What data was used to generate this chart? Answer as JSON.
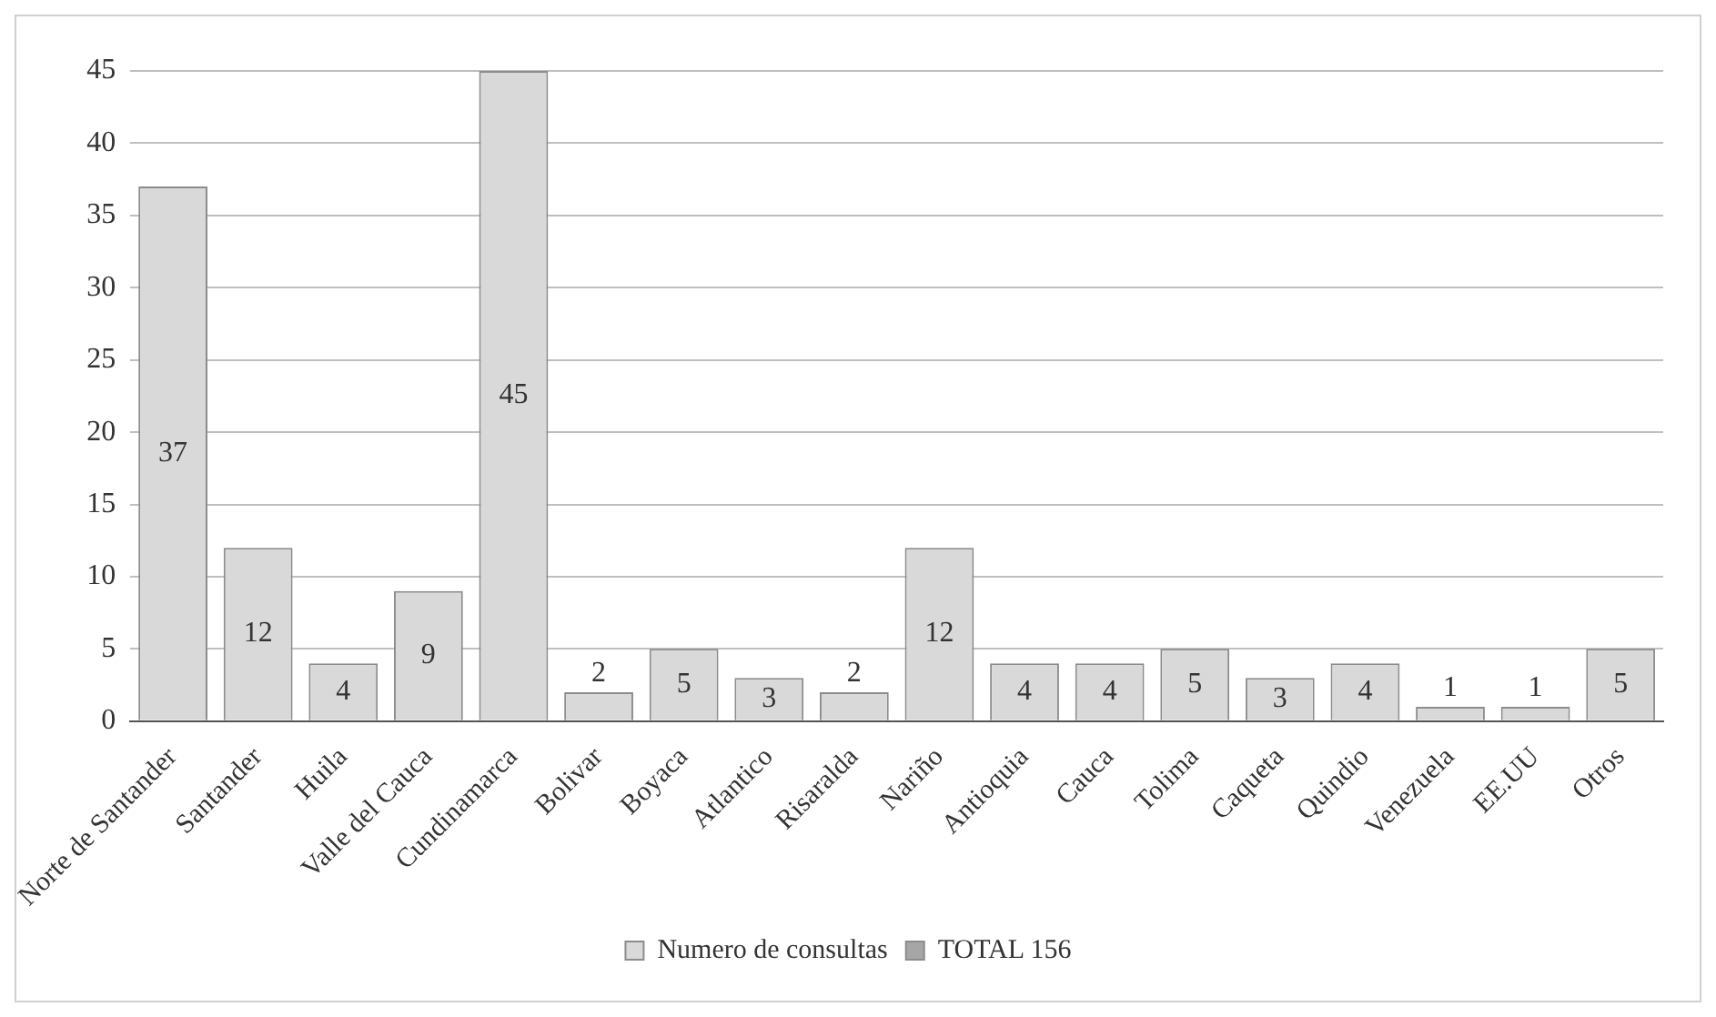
{
  "chart_data": {
    "type": "bar",
    "categories": [
      "Norte de Santander",
      "Santander",
      "Huila",
      "Valle del Cauca",
      "Cundinamarca",
      "Bolivar",
      "Boyaca",
      "Atlantico",
      "Risaralda",
      "Nariño",
      "Antioquia",
      "Cauca",
      "Tolima",
      "Caqueta",
      "Quindio",
      "Venezuela",
      "EE.UU",
      "Otros"
    ],
    "series": [
      {
        "name": "Numero de consultas",
        "color": "#d9d9d9",
        "values": [
          37,
          12,
          4,
          9,
          45,
          2,
          5,
          3,
          2,
          12,
          4,
          4,
          5,
          3,
          4,
          1,
          1,
          5
        ]
      },
      {
        "name": "TOTAL 156",
        "color": "#a6a6a6",
        "values": [
          null,
          null,
          null,
          null,
          null,
          null,
          null,
          null,
          null,
          null,
          null,
          null,
          null,
          null,
          null,
          null,
          null,
          null
        ]
      }
    ],
    "ylim": [
      0,
      45
    ],
    "yticks": [
      0,
      5,
      10,
      15,
      20,
      25,
      30,
      35,
      40,
      45
    ],
    "grid": "y",
    "legend": "bottom",
    "data_labels": true
  }
}
